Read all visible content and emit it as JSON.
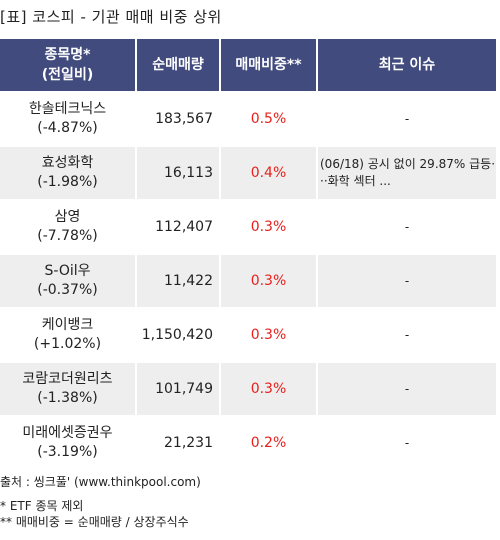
{
  "title": "[표] 코스피 - 기관 매매 비중 상위",
  "table": {
    "header": [
      "종목명*\n(전일비)",
      "순매매량",
      "매매비중**",
      "최근 이슈"
    ],
    "rows": [
      {
        "name": "한솔테크닉스",
        "change": "(-4.87%)",
        "net_volume": "183,567",
        "ratio": "0.5%",
        "issue": "-"
      },
      {
        "name": "효성화학",
        "change": "(-1.98%)",
        "net_volume": "16,113",
        "ratio": "0.4%",
        "issue": "(06/18) 공시 없이 29.87% 급등···화학 섹터 ..."
      },
      {
        "name": "삼영",
        "change": "(-7.78%)",
        "net_volume": "112,407",
        "ratio": "0.3%",
        "issue": "-"
      },
      {
        "name": "S-Oil우",
        "change": "(-0.37%)",
        "net_volume": "11,422",
        "ratio": "0.3%",
        "issue": "-"
      },
      {
        "name": "케이뱅크",
        "change": "(+1.02%)",
        "net_volume": "1,150,420",
        "ratio": "0.3%",
        "issue": "-"
      },
      {
        "name": "코람코더원리츠",
        "change": "(-1.38%)",
        "net_volume": "101,749",
        "ratio": "0.3%",
        "issue": "-"
      },
      {
        "name": "미래에셋증권우",
        "change": "(-3.19%)",
        "net_volume": "21,231",
        "ratio": "0.2%",
        "issue": "-"
      }
    ]
  },
  "footer": {
    "source": "출처 : 씽크풀' (www.thinkpool.com)",
    "notes": [
      "* ETF 종목 제외",
      "** 매매비중 = 순매매량 / 상장주식수"
    ]
  }
}
